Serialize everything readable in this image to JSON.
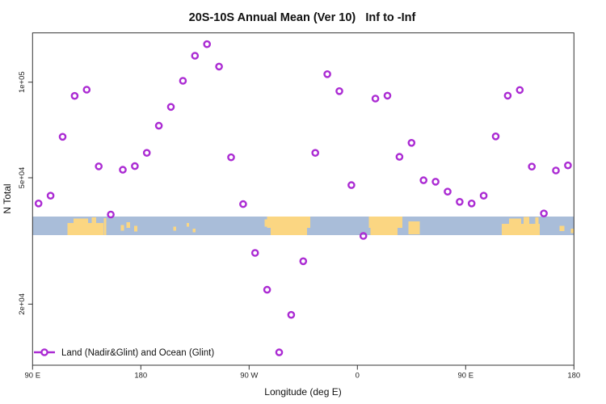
{
  "window": {
    "title": "20S-10S Annual Mean (Ver 10)   Inf to -Inf"
  },
  "colors": {
    "point": "#AB2BD3",
    "ocean": "#A9BDD9",
    "land": "#FBD682",
    "axis": "#333333",
    "background": "#FFFFFF"
  },
  "legend": {
    "label": "Land (Nadir&Glint) and Ocean (Glint)"
  },
  "chart_data": {
    "type": "scatter",
    "title": "20S-10S Annual Mean (Ver 10)   Inf to -Inf",
    "xlabel": "Longitude (deg E)",
    "ylabel": "N Total",
    "x_scale": "linear (longitude wraps past 360)",
    "y_scale": "log10",
    "xlim": [
      90,
      540
    ],
    "ylim": [
      13000,
      143000
    ],
    "grid": "off",
    "legend_position": "bottom-left-inside",
    "x_ticks": [
      {
        "value": 90,
        "label": "90 E"
      },
      {
        "value": 180,
        "label": "180"
      },
      {
        "value": 270,
        "label": "90 W"
      },
      {
        "value": 360,
        "label": "0"
      },
      {
        "value": 450,
        "label": "90 E"
      },
      {
        "value": 540,
        "label": "180"
      }
    ],
    "y_ticks": [
      {
        "value": 100000,
        "label": "1e+05"
      },
      {
        "value": 50000,
        "label": "5e+04"
      },
      {
        "value": 20000,
        "label": "2e+04"
      }
    ],
    "series": [
      {
        "name": "Land (Nadir&Glint) and Ocean (Glint)",
        "marker": "open-circle",
        "color": "#AB2BD3",
        "x": [
          95,
          105,
          115,
          125,
          135,
          145,
          155,
          165,
          175,
          185,
          195,
          205,
          215,
          225,
          235,
          245,
          255,
          265,
          275,
          285,
          295,
          305,
          315,
          325,
          335,
          345,
          355,
          365,
          375,
          385,
          395,
          405,
          415,
          425,
          435,
          445,
          455,
          465,
          475,
          485,
          495,
          505,
          515,
          525,
          535
        ],
        "y": [
          41500,
          43900,
          67300,
          90500,
          94700,
          54300,
          38300,
          53000,
          54400,
          59900,
          72900,
          83600,
          101000,
          121100,
          131700,
          112000,
          58000,
          41300,
          29000,
          22200,
          14100,
          18500,
          27300,
          59900,
          106000,
          93700,
          47400,
          32800,
          88800,
          90700,
          58200,
          64400,
          49100,
          48600,
          45200,
          42000,
          41500,
          43900,
          67500,
          90700,
          94500,
          54200,
          38600,
          52700,
          54700
        ]
      }
    ],
    "map_band": {
      "description": "20S-10S latitude strip: ocean in light blue, land in tan",
      "value_top": 36500,
      "value_bottom": 32000,
      "land_patches_lon_frac": [
        [
          119,
          149,
          0.35,
          1
        ],
        [
          124,
          136,
          0.1,
          0.35
        ],
        [
          139,
          143,
          0.04,
          0.35
        ],
        [
          149.3,
          151.3,
          0.08,
          1
        ],
        [
          163.5,
          166,
          0.45,
          0.75
        ],
        [
          168,
          171,
          0.3,
          0.6
        ],
        [
          174.5,
          177,
          0.5,
          0.8
        ],
        [
          207,
          209.5,
          0.55,
          0.75
        ],
        [
          218,
          220,
          0.35,
          0.55
        ],
        [
          223,
          225.5,
          0.65,
          0.85
        ],
        [
          285,
          321,
          0,
          0.6
        ],
        [
          288,
          318,
          0.6,
          1
        ],
        [
          283,
          285,
          0.15,
          0.55
        ],
        [
          369.5,
          397.5,
          0,
          0.6
        ],
        [
          371,
          393.5,
          0.6,
          1
        ],
        [
          402.5,
          412,
          0.25,
          0.95
        ],
        [
          480,
          511.5,
          0.4,
          1
        ],
        [
          486,
          496,
          0.1,
          0.4
        ],
        [
          498,
          501,
          0.03,
          0.4
        ],
        [
          500.8,
          502.8,
          0.03,
          0.4
        ],
        [
          508,
          510.5,
          0.05,
          0.4
        ],
        [
          528,
          532,
          0.5,
          0.78
        ],
        [
          537.5,
          540,
          0.65,
          0.9
        ]
      ]
    }
  }
}
